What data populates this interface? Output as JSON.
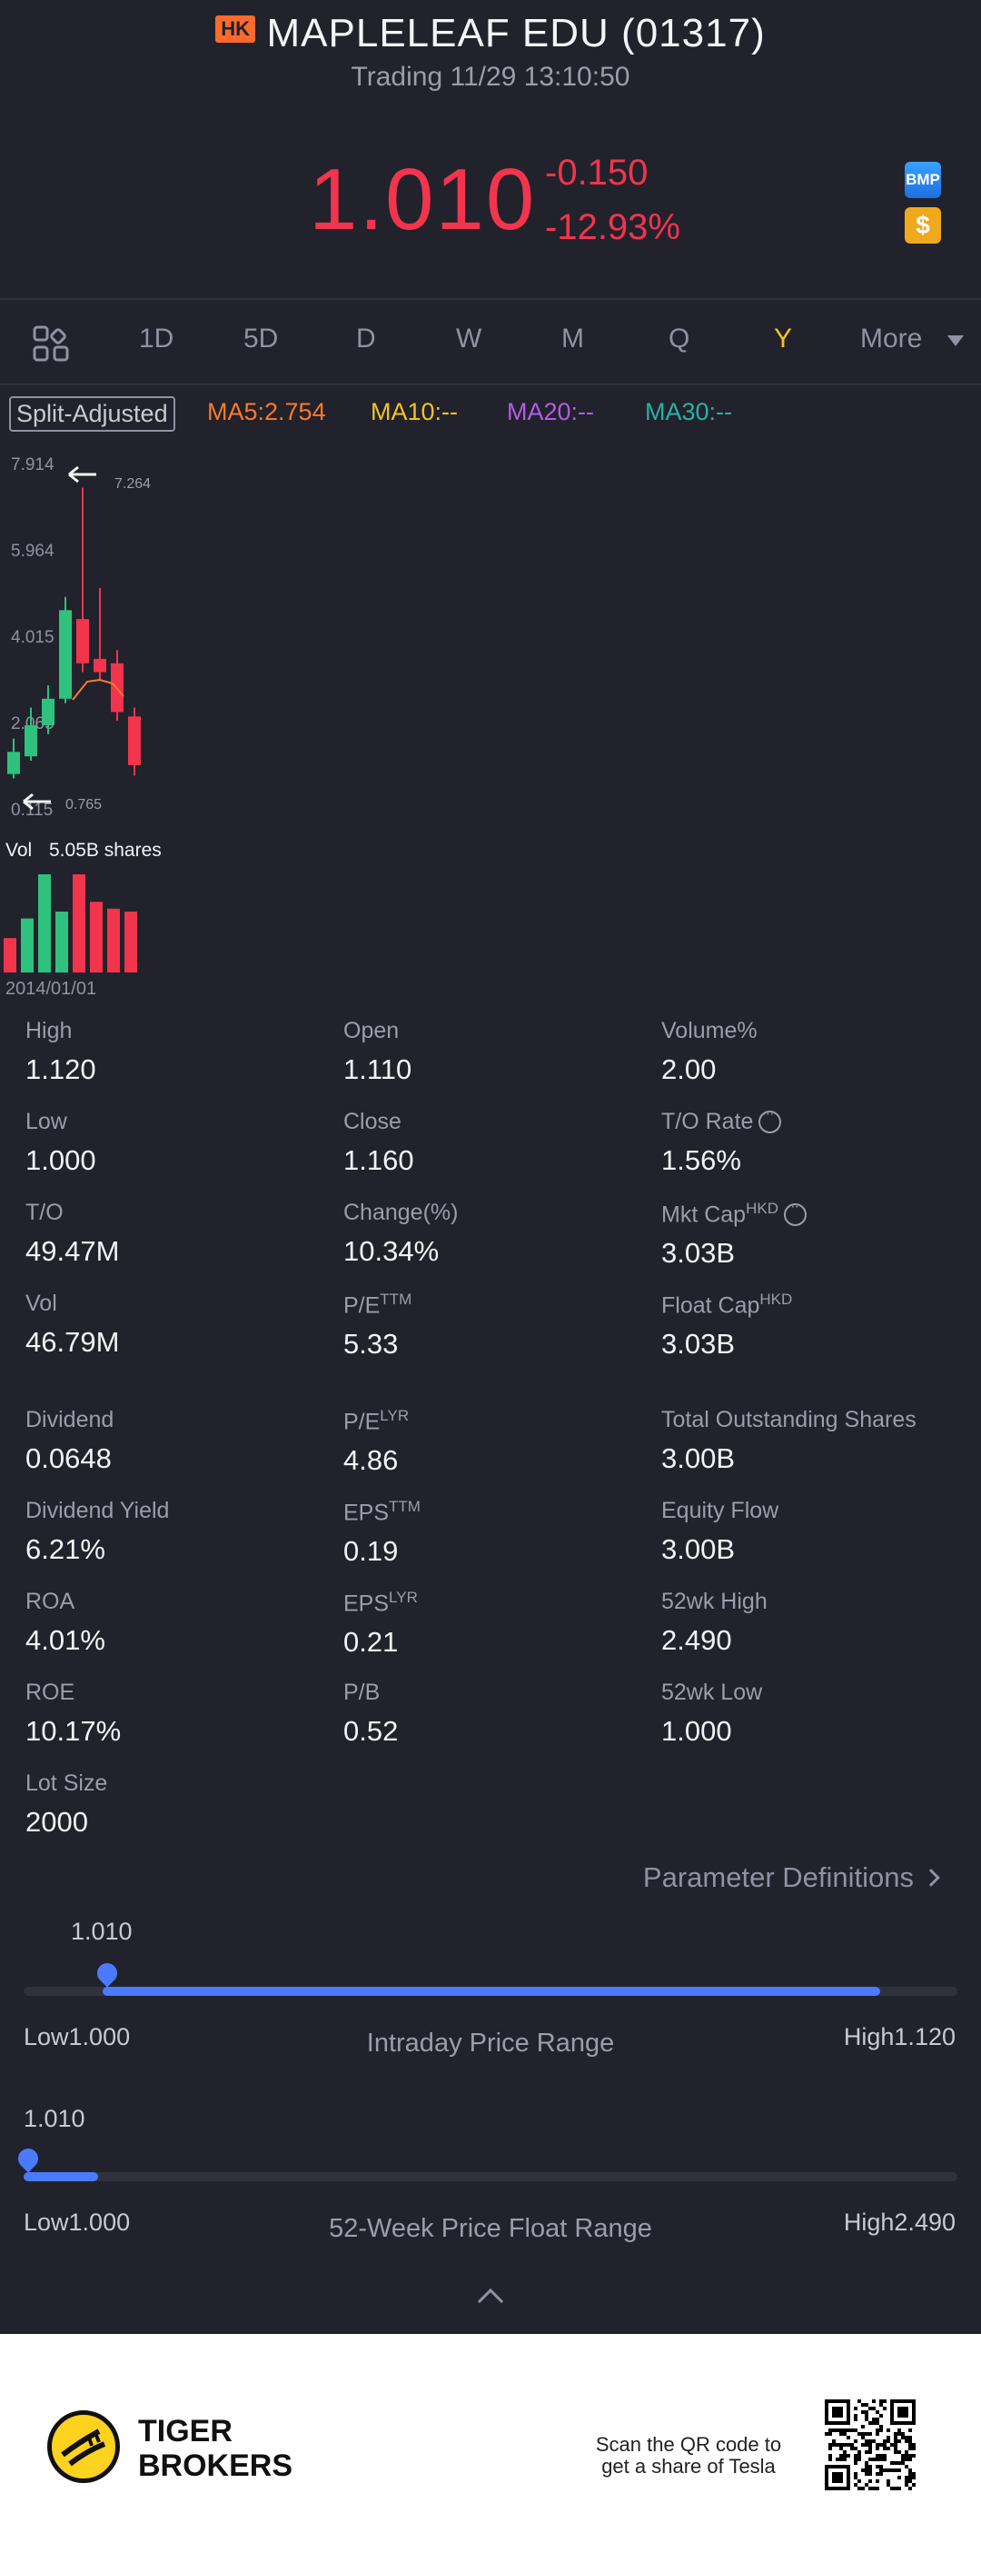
{
  "header": {
    "market_badge": "HK",
    "stock_name": "MAPLELEAF EDU (01317)",
    "status": "Trading 11/29 13:10:50",
    "price": "1.010",
    "change_abs": "-0.150",
    "change_pct": "-12.93%",
    "badge_bmp": "BMP",
    "badge_dollar": "$"
  },
  "tabs": {
    "items": [
      "1D",
      "5D",
      "D",
      "W",
      "M",
      "Q",
      "Y",
      "More"
    ],
    "active": "Y"
  },
  "ma_row": {
    "split_label": "Split-Adjusted",
    "ma5": "MA5:2.754",
    "ma10": "MA10:--",
    "ma20": "MA20:--",
    "ma30": "MA30:--"
  },
  "chart_data": {
    "type": "candlestick",
    "y_ticks": [
      "7.914",
      "5.964",
      "4.015",
      "2.065",
      "0.115"
    ],
    "max_label": "7.264",
    "min_label": "0.765",
    "volume_label": "Vol",
    "volume_value": "5.05B shares",
    "x_label": "2014/01/01",
    "candles": [
      {
        "open": 0.8,
        "close": 1.3,
        "high": 1.6,
        "low": 0.7,
        "dir": "up"
      },
      {
        "open": 1.2,
        "close": 1.9,
        "high": 2.3,
        "low": 1.1,
        "dir": "up"
      },
      {
        "open": 1.9,
        "close": 2.5,
        "high": 2.8,
        "low": 1.7,
        "dir": "up"
      },
      {
        "open": 2.5,
        "close": 4.5,
        "high": 4.8,
        "low": 2.4,
        "dir": "up"
      },
      {
        "open": 4.3,
        "close": 3.3,
        "high": 7.264,
        "low": 3.1,
        "dir": "down"
      },
      {
        "open": 3.4,
        "close": 3.1,
        "high": 5.0,
        "low": 2.9,
        "dir": "down"
      },
      {
        "open": 3.3,
        "close": 2.2,
        "high": 3.6,
        "low": 2.0,
        "dir": "down"
      },
      {
        "open": 2.1,
        "close": 1.0,
        "high": 2.3,
        "low": 0.765,
        "dir": "down"
      }
    ],
    "volumes": [
      {
        "value": 0.35,
        "dir": "down"
      },
      {
        "value": 0.55,
        "dir": "up"
      },
      {
        "value": 1.0,
        "dir": "up"
      },
      {
        "value": 0.62,
        "dir": "up"
      },
      {
        "value": 1.0,
        "dir": "down"
      },
      {
        "value": 0.72,
        "dir": "down"
      },
      {
        "value": 0.65,
        "dir": "down"
      },
      {
        "value": 0.62,
        "dir": "down"
      }
    ],
    "ylim": [
      0.115,
      7.914
    ]
  },
  "stats": [
    {
      "label": "High",
      "value": "1.120"
    },
    {
      "label": "Open",
      "value": "1.110"
    },
    {
      "label": "Volume%",
      "value": "2.00"
    },
    {
      "label": "Low",
      "value": "1.000"
    },
    {
      "label": "Close",
      "value": "1.160"
    },
    {
      "label": "T/O Rate",
      "value": "1.56%",
      "info": true
    },
    {
      "label": "T/O",
      "value": "49.47M"
    },
    {
      "label": "Change(%)",
      "value": "10.34%"
    },
    {
      "label": "Mkt Cap",
      "sup": "HKD",
      "value": "3.03B",
      "info": true
    },
    {
      "label": "Vol",
      "value": "46.79M"
    },
    {
      "label": "P/E",
      "sup": "TTM",
      "value": "5.33"
    },
    {
      "label": "Float Cap",
      "sup": "HKD",
      "value": "3.03B"
    },
    {
      "label": "Dividend",
      "value": "0.0648"
    },
    {
      "label": "P/E",
      "sup": "LYR",
      "value": "4.86"
    },
    {
      "label": "Total Outstanding Shares",
      "value": "3.00B"
    },
    {
      "label": "Dividend Yield",
      "value": "6.21%"
    },
    {
      "label": "EPS",
      "sup": "TTM",
      "value": "0.19"
    },
    {
      "label": "Equity Flow",
      "value": "3.00B"
    },
    {
      "label": "ROA",
      "value": "4.01%"
    },
    {
      "label": "EPS",
      "sup": "LYR",
      "value": "0.21"
    },
    {
      "label": "52wk High",
      "value": "2.490"
    },
    {
      "label": "ROE",
      "value": "10.17%"
    },
    {
      "label": "P/B",
      "value": "0.52"
    },
    {
      "label": "52wk Low",
      "value": "1.000"
    },
    {
      "label": "Lot Size",
      "value": "2000"
    }
  ],
  "param_link": "Parameter Definitions",
  "intraday": {
    "current": "1.010",
    "low": "Low1.000",
    "high": "High1.120",
    "caption": "Intraday Price Range",
    "fill_from": 0.085,
    "fill_to": 0.917
  },
  "week52": {
    "current": "1.010",
    "low": "Low1.000",
    "high": "High2.490",
    "caption": "52-Week Price Float Range",
    "fill_from": 0.0,
    "fill_to": 0.08
  },
  "footer": {
    "brand_line1": "TIGER",
    "brand_line2": "BROKERS",
    "scan_text": "Scan the QR code to get a share of Tesla"
  },
  "colors": {
    "up": "#2ec27e",
    "down": "#f2344d",
    "accent": "#4a7bff",
    "active_tab": "#f5c320",
    "ma5": "#ff7a2a",
    "ma10": "#f5c320",
    "ma20": "#b15de6",
    "ma30": "#26b3a2"
  }
}
